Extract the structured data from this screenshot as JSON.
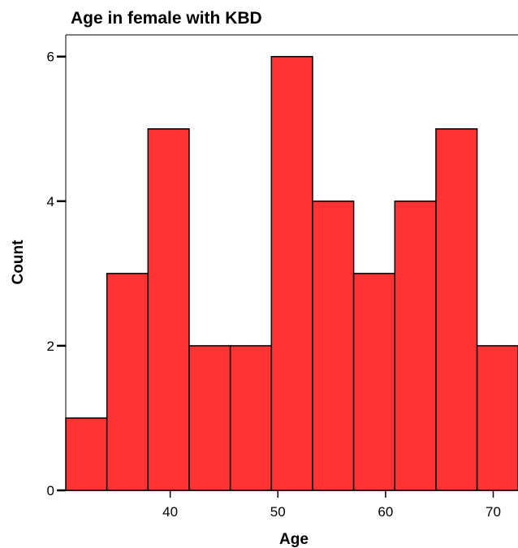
{
  "chart_data": {
    "type": "bar",
    "title": "Age in female with KBD",
    "xlabel": "Age",
    "ylabel": "Count",
    "bin_edges": [
      30.3,
      34.12,
      37.94,
      41.76,
      45.58,
      49.4,
      53.22,
      57.04,
      60.86,
      64.68,
      68.5,
      72.32
    ],
    "values": [
      1,
      3,
      5,
      2,
      2,
      6,
      4,
      3,
      4,
      5,
      2
    ],
    "xticks": [
      40,
      50,
      60,
      70
    ],
    "yticks": [
      0,
      2,
      4,
      6
    ],
    "xlim": [
      30.3,
      72.3
    ],
    "ylim": [
      0,
      6.3
    ],
    "grid": false,
    "bar_color": "#ff3333",
    "edge_color": "#000000"
  }
}
